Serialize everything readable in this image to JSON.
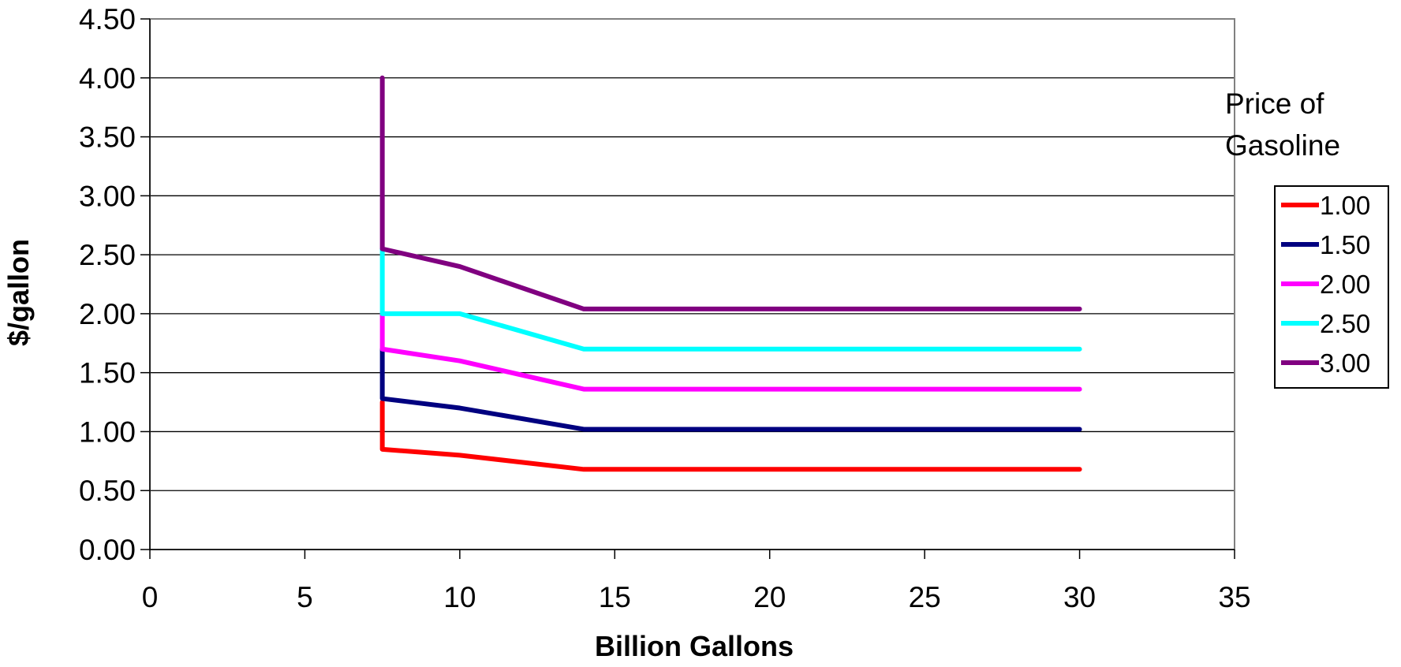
{
  "chart_data": {
    "type": "line",
    "xlabel": "Billion Gallons",
    "ylabel": "$/gallon",
    "xlim": [
      0,
      35
    ],
    "ylim": [
      0,
      4.5
    ],
    "x_ticks": [
      "0",
      "5",
      "10",
      "15",
      "20",
      "25",
      "30",
      "35"
    ],
    "y_ticks": [
      "0.00",
      "0.50",
      "1.00",
      "1.50",
      "2.00",
      "2.50",
      "3.00",
      "3.50",
      "4.00",
      "4.50"
    ],
    "grid": "horizontal",
    "legend": {
      "title_lines": [
        "Price of",
        "Gasoline"
      ],
      "placement": "right"
    },
    "series": [
      {
        "name": "1.00",
        "color": "#ff0000",
        "points": [
          [
            7.5,
            1.25
          ],
          [
            7.5,
            0.85
          ],
          [
            10,
            0.8
          ],
          [
            14,
            0.68
          ],
          [
            30,
            0.68
          ]
        ]
      },
      {
        "name": "1.50",
        "color": "#000080",
        "points": [
          [
            7.5,
            1.7
          ],
          [
            7.5,
            1.28
          ],
          [
            10,
            1.2
          ],
          [
            14,
            1.02
          ],
          [
            30,
            1.02
          ]
        ]
      },
      {
        "name": "2.00",
        "color": "#ff00ff",
        "points": [
          [
            7.5,
            2.0
          ],
          [
            7.5,
            1.7
          ],
          [
            10,
            1.6
          ],
          [
            14,
            1.36
          ],
          [
            30,
            1.36
          ]
        ]
      },
      {
        "name": "2.50",
        "color": "#00ffff",
        "points": [
          [
            7.5,
            2.55
          ],
          [
            7.5,
            2.0
          ],
          [
            10,
            2.0
          ],
          [
            14,
            1.7
          ],
          [
            30,
            1.7
          ]
        ]
      },
      {
        "name": "3.00",
        "color": "#800080",
        "points": [
          [
            7.5,
            4.0
          ],
          [
            7.5,
            2.55
          ],
          [
            10,
            2.4
          ],
          [
            14,
            2.04
          ],
          [
            30,
            2.04
          ]
        ]
      }
    ]
  }
}
